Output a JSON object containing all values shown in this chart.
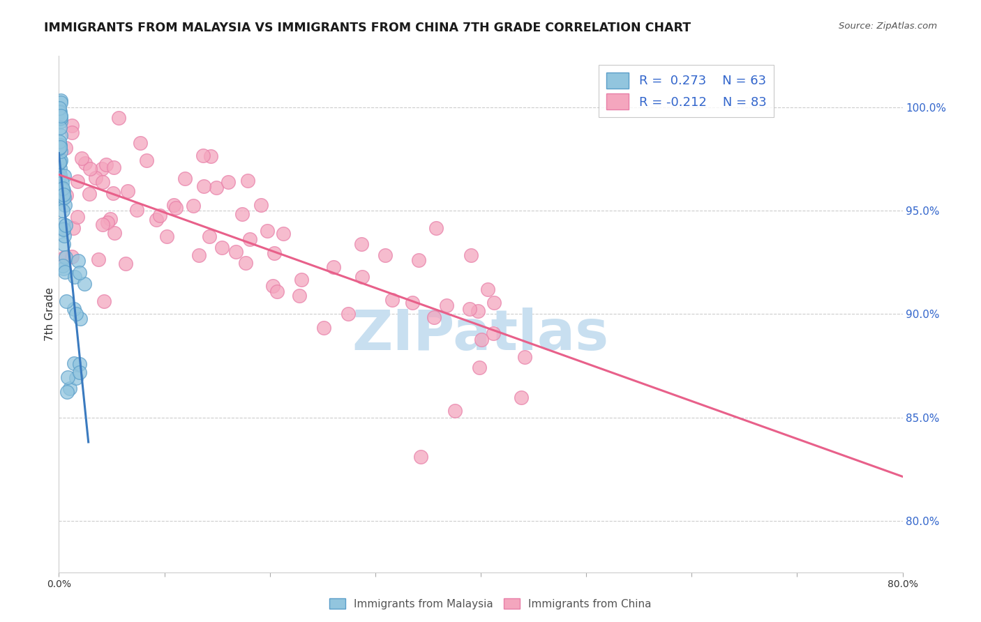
{
  "title": "IMMIGRANTS FROM MALAYSIA VS IMMIGRANTS FROM CHINA 7TH GRADE CORRELATION CHART",
  "source": "Source: ZipAtlas.com",
  "ylabel": "7th Grade",
  "y_axis_right_labels": [
    "100.0%",
    "95.0%",
    "90.0%",
    "85.0%",
    "80.0%"
  ],
  "y_axis_right_values": [
    1.0,
    0.95,
    0.9,
    0.85,
    0.8
  ],
  "xlim": [
    0.0,
    0.8
  ],
  "ylim": [
    0.775,
    1.025
  ],
  "malaysia_R": 0.273,
  "malaysia_N": 63,
  "china_R": -0.212,
  "china_N": 83,
  "malaysia_color": "#92c5de",
  "china_color": "#f4a6be",
  "malaysia_edge_color": "#5a9ec9",
  "china_edge_color": "#e87fa8",
  "malaysia_line_color": "#3a7abf",
  "china_line_color": "#e8608a",
  "watermark_text": "ZIPatlas",
  "watermark_color": "#c8dff0",
  "grid_color": "#cccccc",
  "background_color": "#ffffff",
  "title_color": "#1a1a1a",
  "source_color": "#555555",
  "axis_label_color": "#333333",
  "right_tick_color": "#3366cc",
  "legend_label_color": "#3366cc",
  "bottom_legend_color": "#555555"
}
